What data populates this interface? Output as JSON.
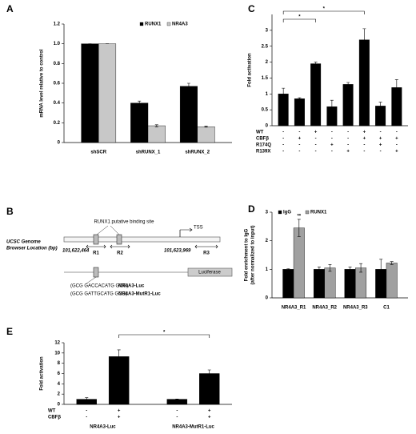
{
  "chart_data": [
    {
      "type": "bar",
      "panel": "A",
      "ylabel": "mRNA level relative to control",
      "categories": [
        "shSCR",
        "shRUNX_1",
        "shRUNX_2"
      ],
      "series": [
        {
          "name": "RUNX1",
          "color": "#000000",
          "values": [
            1.0,
            0.4,
            0.57
          ],
          "errors": [
            0,
            0.02,
            0.03
          ]
        },
        {
          "name": "NR4A3",
          "color": "#c8c8c8",
          "values": [
            1.0,
            0.17,
            0.16
          ],
          "errors": [
            0,
            0.01,
            0.005
          ]
        }
      ],
      "ylim": [
        0,
        1.2
      ],
      "yticks": [
        0,
        0.2,
        0.4,
        0.6,
        0.8,
        {
          "value": 1,
          "label": "1.0"
        },
        1.2
      ],
      "legend": "top-right"
    },
    {
      "type": "bar",
      "panel": "C",
      "ylabel": "Fold activation",
      "color": "#000000",
      "values": [
        1.0,
        0.85,
        1.95,
        0.6,
        1.3,
        2.7,
        0.62,
        1.2
      ],
      "errors": [
        0.18,
        0.03,
        0.05,
        0.2,
        0.06,
        0.35,
        0.12,
        0.25
      ],
      "ylim": [
        0,
        3.5
      ],
      "yticks": [
        0,
        0.5,
        1,
        1.5,
        2,
        2.5,
        3
      ],
      "conditions": [
        {
          "name": "WT",
          "marks": [
            "-",
            "-",
            "+",
            "-",
            "-",
            "+",
            "-",
            "-"
          ]
        },
        {
          "name": "CBFβ",
          "marks": [
            "-",
            "+",
            "-",
            "-",
            "-",
            "+",
            "+",
            "+"
          ]
        },
        {
          "name": "R174Q",
          "marks": [
            "-",
            "-",
            "-",
            "+",
            "-",
            "-",
            "+",
            "-"
          ]
        },
        {
          "name": "R139X",
          "marks": [
            "-",
            "-",
            "-",
            "-",
            "+",
            "-",
            "-",
            "+"
          ]
        }
      ],
      "significance": [
        {
          "from": 0,
          "to": 2,
          "label": "*"
        },
        {
          "from": 0,
          "to": 5,
          "label": "*"
        }
      ]
    },
    {
      "type": "bar",
      "panel": "D",
      "ylabel": [
        "Fold enrichment to IgG",
        "(after normalized to input)"
      ],
      "categories": [
        "NR4A3_R1",
        "NR4A3_R2",
        "NR4A3_R3",
        "C1"
      ],
      "series": [
        {
          "name": "IgG",
          "color": "#000000",
          "values": [
            1,
            1,
            1,
            1
          ],
          "errors": [
            0.02,
            0.08,
            0.08,
            0.35
          ]
        },
        {
          "name": "RUNX1",
          "color": "#a0a0a0",
          "values": [
            2.45,
            1.05,
            1.05,
            1.22
          ],
          "errors": [
            0.3,
            0.12,
            0.15,
            0.05
          ]
        }
      ],
      "ylim": [
        0,
        3
      ],
      "yticks": [
        0,
        1,
        2,
        3
      ],
      "legend": "top-left",
      "annotations": [
        {
          "category": 0,
          "label": "**"
        }
      ]
    },
    {
      "type": "bar",
      "panel": "E",
      "ylabel": "Fold activation",
      "color": "#000000",
      "values": [
        1,
        9.3,
        1,
        6.0
      ],
      "errors": [
        0.3,
        1.3,
        0.05,
        0.7
      ],
      "ylim": [
        0,
        12
      ],
      "yticks": [
        0,
        2,
        4,
        6,
        8,
        10,
        12
      ],
      "conditions": [
        {
          "name": "WT",
          "marks": [
            "-",
            "+",
            "-",
            "+"
          ]
        },
        {
          "name": "CBFβ",
          "marks": [
            "-",
            "+",
            "-",
            "+"
          ]
        }
      ],
      "group_labels": [
        "NR4A3-Luc",
        "NR4A3-MutR1-Luc"
      ],
      "significance": [
        {
          "from": 1,
          "to": 3,
          "label": "*"
        }
      ]
    }
  ],
  "diagram": {
    "panel": "B",
    "site_label": "RUNX1 putative binding site",
    "tss": "TSS",
    "location_label": [
      "UCSC Genome",
      "Browser Location (bp)"
    ],
    "start": "101,622,464",
    "end": "101,623,969",
    "regions": [
      "R1",
      "R2",
      "R3"
    ],
    "reporter": "Luciferase",
    "constructs": [
      {
        "sequence": "(GCG GACCACATG GCG)",
        "name": "NR4A3-Luc"
      },
      {
        "sequence": "(GCG GATTGCATG GCG)",
        "name": "NR4A3-MutR1-Luc"
      }
    ]
  }
}
